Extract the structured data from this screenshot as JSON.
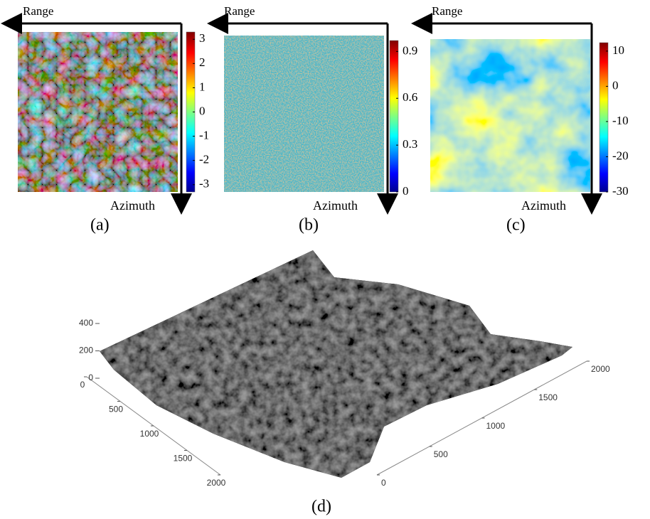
{
  "panels": [
    {
      "range_label": "Range",
      "azimuth_label": "Azimuth",
      "caption": "(a)",
      "colorbar": {
        "lim": [
          -3.3,
          3.3
        ],
        "ticks": [
          3,
          2,
          1,
          0,
          -1,
          -2,
          -3
        ]
      }
    },
    {
      "range_label": "Range",
      "azimuth_label": "Azimuth",
      "caption": "(b)",
      "colorbar": {
        "lim": [
          0,
          0.97
        ],
        "ticks": [
          0.9,
          0.6,
          0.3,
          0
        ]
      }
    },
    {
      "range_label": "Range",
      "azimuth_label": "Azimuth",
      "caption": "(c)",
      "colorbar": {
        "lim": [
          -30,
          12.4
        ],
        "ticks": [
          10,
          0,
          -10,
          -20,
          -30
        ]
      }
    }
  ],
  "surface": {
    "caption": "(d)",
    "z_ticks": [
      0,
      200,
      400
    ],
    "z_lim": [
      0,
      400
    ],
    "x_ticks": [
      0,
      500,
      1000,
      1500,
      2000
    ],
    "x_lim": [
      0,
      2000
    ],
    "y_ticks": [
      0,
      500,
      1000,
      1500,
      2000
    ],
    "y_lim": [
      0,
      2000
    ]
  }
}
